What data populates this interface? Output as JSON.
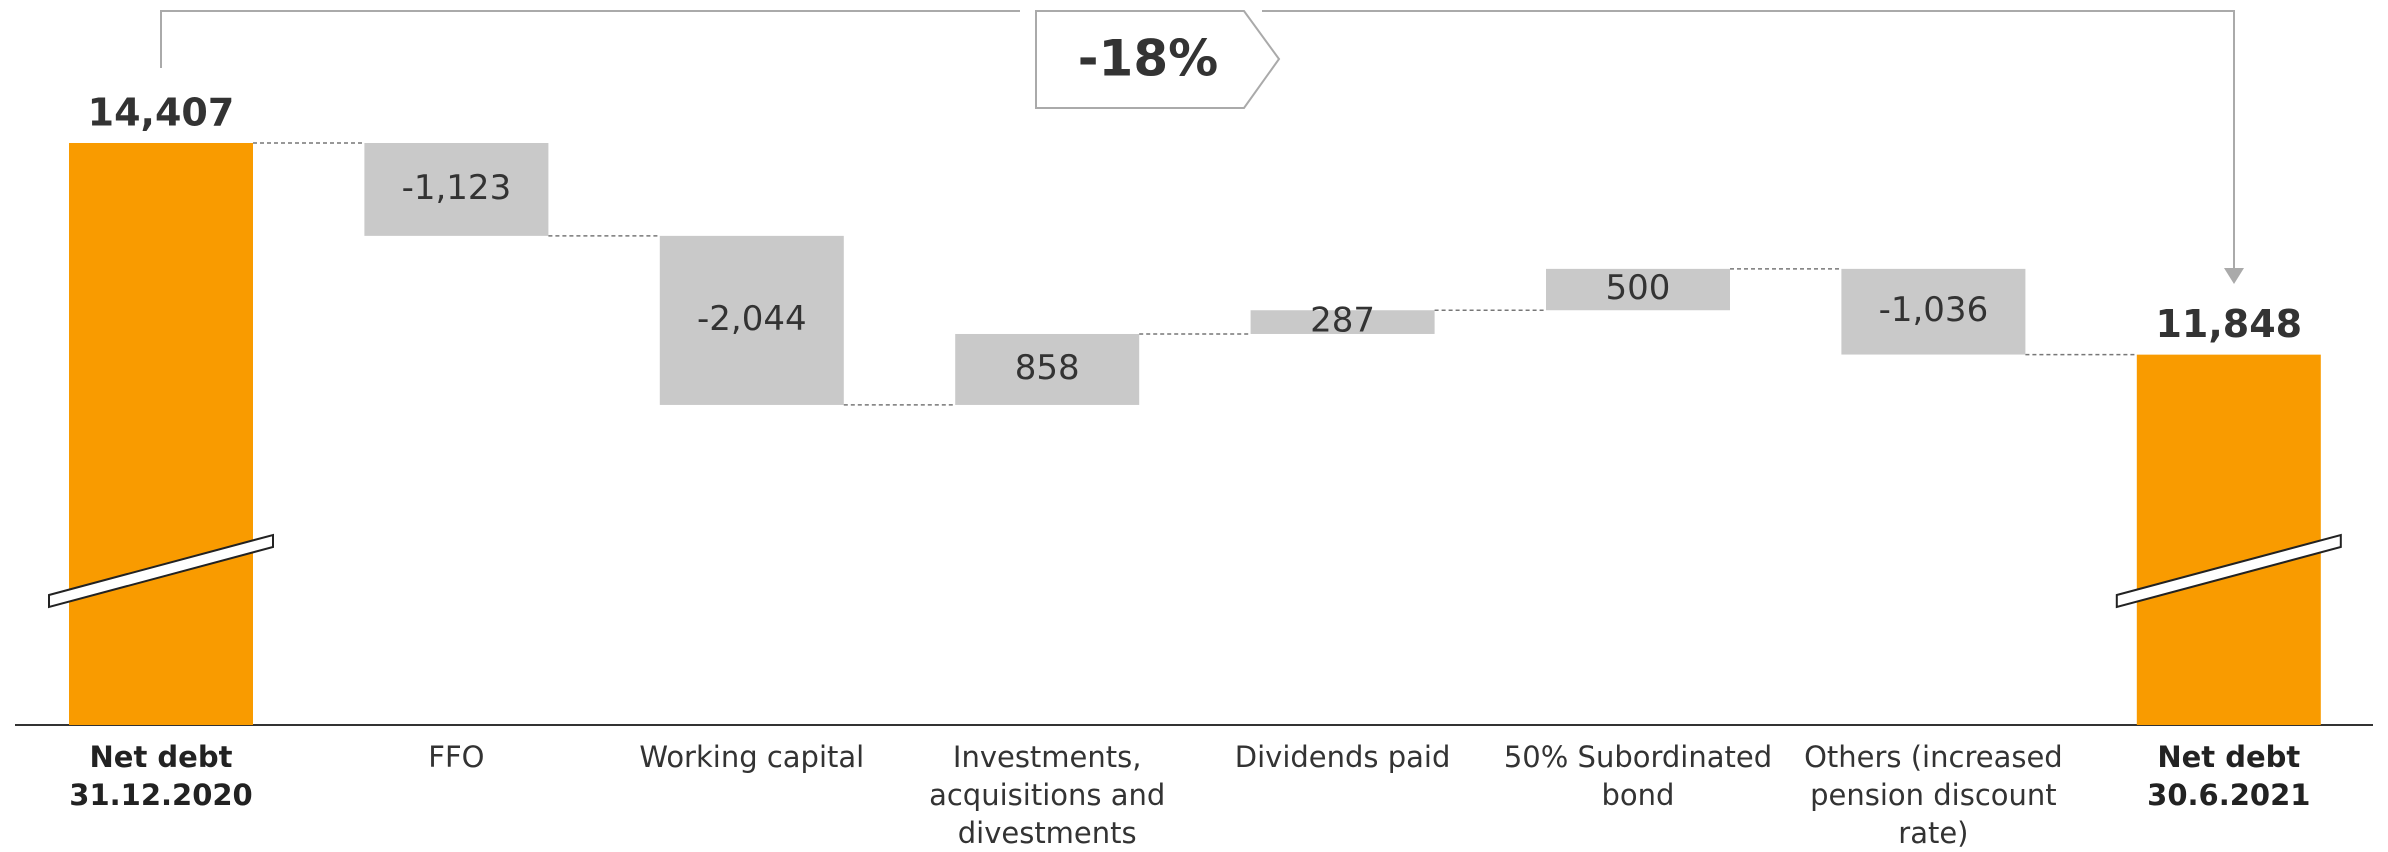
{
  "chart_data": {
    "type": "waterfall",
    "categories": [
      "Net debt 31.12.2020",
      "FFO",
      "Working capital",
      "Investments, acquisitions and divestments",
      "Dividends paid",
      "50% Subordinated bond",
      "Others (increased pension discount rate)",
      "Net debt 30.6.2021"
    ],
    "values": [
      14407,
      -1123,
      -2044,
      858,
      287,
      500,
      -1036,
      11848
    ],
    "value_labels": [
      "14,407",
      "-1,123",
      "-2,044",
      "858",
      "287",
      "500",
      "-1,036",
      "11,848"
    ],
    "is_total": [
      true,
      false,
      false,
      false,
      false,
      false,
      false,
      true
    ],
    "total_color": "#f99b00",
    "delta_color": "#c9c9c9",
    "ylim": [
      7370,
      16136
    ],
    "axis_break": true,
    "annotation": "-18%"
  }
}
